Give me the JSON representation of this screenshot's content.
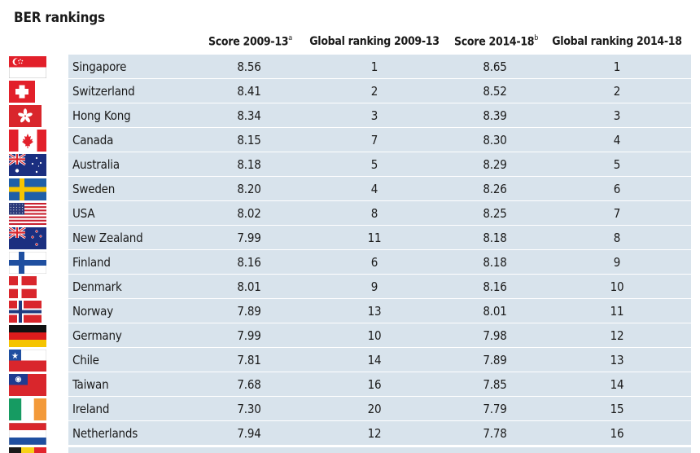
{
  "title": "BER rankings",
  "headers": {
    "score_0913": "Score 2009-13",
    "score_0913_sup": "a",
    "rank_0913": "Global ranking 2009-13",
    "score_1418": "Score 2014-18",
    "score_1418_sup": "b",
    "rank_1418": "Global ranking 2014-18"
  },
  "colors": {
    "row_band": "#d8e3ec",
    "text": "#1a1a1a"
  },
  "rows": [
    {
      "country": "Singapore",
      "flag": "singapore-flag-icon",
      "score_0913": "8.56",
      "rank_0913": "1",
      "score_1418": "8.65",
      "rank_1418": "1"
    },
    {
      "country": "Switzerland",
      "flag": "switzerland-flag-icon",
      "score_0913": "8.41",
      "rank_0913": "2",
      "score_1418": "8.52",
      "rank_1418": "2"
    },
    {
      "country": "Hong Kong",
      "flag": "hong-kong-flag-icon",
      "score_0913": "8.34",
      "rank_0913": "3",
      "score_1418": "8.39",
      "rank_1418": "3"
    },
    {
      "country": "Canada",
      "flag": "canada-flag-icon",
      "score_0913": "8.15",
      "rank_0913": "7",
      "score_1418": "8.30",
      "rank_1418": "4"
    },
    {
      "country": "Australia",
      "flag": "australia-flag-icon",
      "score_0913": "8.18",
      "rank_0913": "5",
      "score_1418": "8.29",
      "rank_1418": "5"
    },
    {
      "country": "Sweden",
      "flag": "sweden-flag-icon",
      "score_0913": "8.20",
      "rank_0913": "4",
      "score_1418": "8.26",
      "rank_1418": "6"
    },
    {
      "country": "USA",
      "flag": "usa-flag-icon",
      "score_0913": "8.02",
      "rank_0913": "8",
      "score_1418": "8.25",
      "rank_1418": "7"
    },
    {
      "country": "New Zealand",
      "flag": "new-zealand-flag-icon",
      "score_0913": "7.99",
      "rank_0913": "11",
      "score_1418": "8.18",
      "rank_1418": "8"
    },
    {
      "country": "Finland",
      "flag": "finland-flag-icon",
      "score_0913": "8.16",
      "rank_0913": "6",
      "score_1418": "8.18",
      "rank_1418": "9"
    },
    {
      "country": "Denmark",
      "flag": "denmark-flag-icon",
      "score_0913": "8.01",
      "rank_0913": "9",
      "score_1418": "8.16",
      "rank_1418": "10"
    },
    {
      "country": "Norway",
      "flag": "norway-flag-icon",
      "score_0913": "7.89",
      "rank_0913": "13",
      "score_1418": "8.01",
      "rank_1418": "11"
    },
    {
      "country": "Germany",
      "flag": "germany-flag-icon",
      "score_0913": "7.99",
      "rank_0913": "10",
      "score_1418": "7.98",
      "rank_1418": "12"
    },
    {
      "country": "Chile",
      "flag": "chile-flag-icon",
      "score_0913": "7.81",
      "rank_0913": "14",
      "score_1418": "7.89",
      "rank_1418": "13"
    },
    {
      "country": "Taiwan",
      "flag": "taiwan-flag-icon",
      "score_0913": "7.68",
      "rank_0913": "16",
      "score_1418": "7.85",
      "rank_1418": "14"
    },
    {
      "country": "Ireland",
      "flag": "ireland-flag-icon",
      "score_0913": "7.30",
      "rank_0913": "20",
      "score_1418": "7.79",
      "rank_1418": "15"
    },
    {
      "country": "Netherlands",
      "flag": "netherlands-flag-icon",
      "score_0913": "7.94",
      "rank_0913": "12",
      "score_1418": "7.78",
      "rank_1418": "16"
    }
  ],
  "partial_row_flag": "belgium-flag-icon"
}
